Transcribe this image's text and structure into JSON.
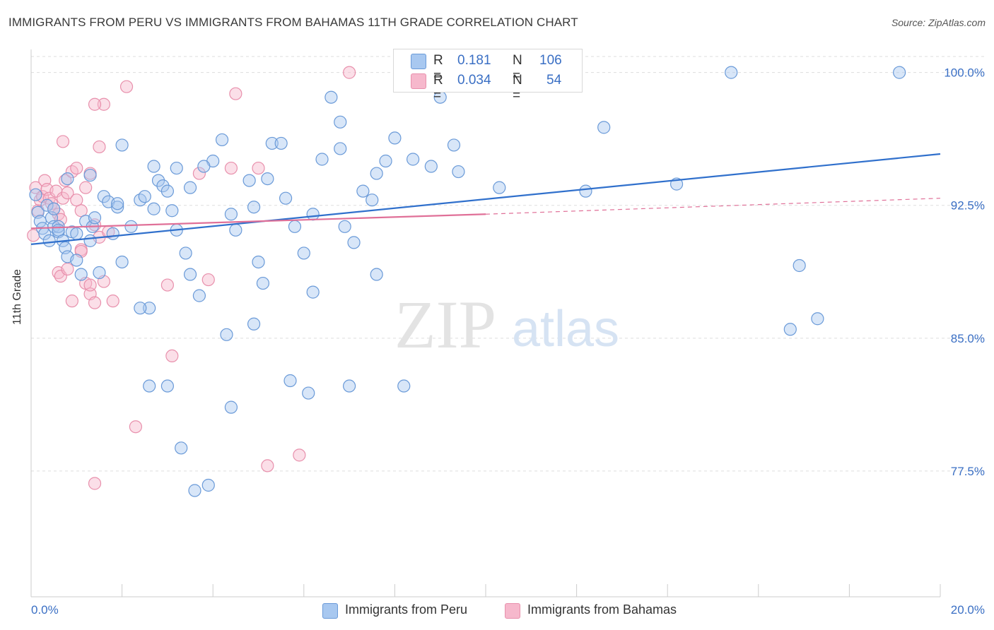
{
  "header": {
    "title": "IMMIGRANTS FROM PERU VS IMMIGRANTS FROM BAHAMAS 11TH GRADE CORRELATION CHART",
    "source": "Source: ZipAtlas.com"
  },
  "watermark": {
    "zip": "ZIP",
    "atlas": "atlas"
  },
  "legend_top": {
    "rows": [
      {
        "r_label": "R =",
        "r_value": "0.181",
        "n_label": "N =",
        "n_value": "106",
        "color": "#a8c8f0"
      },
      {
        "r_label": "R =",
        "r_value": "0.034",
        "n_label": "N =",
        "n_value": "54",
        "color": "#f6b8cc"
      }
    ]
  },
  "legend_bottom": {
    "items": [
      {
        "label": "Immigrants from Peru",
        "color": "#a8c8f0"
      },
      {
        "label": "Immigrants from Bahamas",
        "color": "#f6b8cc"
      }
    ]
  },
  "colors": {
    "peru_fill": "#a8c8f0",
    "peru_stroke": "#6a9ad8",
    "peru_line": "#3070cc",
    "bahamas_fill": "#f6b8cc",
    "bahamas_stroke": "#e890ac",
    "bahamas_line": "#e07098",
    "tick_label": "#3a6fc4",
    "grid": "#dddddd"
  },
  "chart_data": {
    "type": "scatter",
    "title": "IMMIGRANTS FROM PERU VS IMMIGRANTS FROM BAHAMAS 11TH GRADE CORRELATION CHART",
    "xlabel": "",
    "ylabel": "11th Grade",
    "xlim": [
      0,
      20
    ],
    "ylim": [
      70.4,
      101.3
    ],
    "x_tick_labels": [
      "0.0%",
      "20.0%"
    ],
    "y_ticks": [
      77.5,
      85.0,
      92.5,
      100.0
    ],
    "y_tick_labels": [
      "77.5%",
      "85.0%",
      "92.5%",
      "100.0%"
    ],
    "grid": true,
    "legend_position": "bottom",
    "series": [
      {
        "name": "Immigrants from Peru",
        "r": 0.181,
        "n": 106,
        "trend": {
          "x": [
            0,
            20
          ],
          "y": [
            90.3,
            95.4
          ]
        },
        "points": [
          [
            0.1,
            93.1
          ],
          [
            0.15,
            92.1
          ],
          [
            0.2,
            91.6
          ],
          [
            0.25,
            91.2
          ],
          [
            0.3,
            90.9
          ],
          [
            0.35,
            92.5
          ],
          [
            0.45,
            91.8
          ],
          [
            0.5,
            91.3
          ],
          [
            0.6,
            91.0
          ],
          [
            0.7,
            90.5
          ],
          [
            0.75,
            90.1
          ],
          [
            0.8,
            89.6
          ],
          [
            0.9,
            91.0
          ],
          [
            1.0,
            89.4
          ],
          [
            1.1,
            88.6
          ],
          [
            1.2,
            91.6
          ],
          [
            1.3,
            90.5
          ],
          [
            1.35,
            91.3
          ],
          [
            1.4,
            91.8
          ],
          [
            1.5,
            88.7
          ],
          [
            1.6,
            93.0
          ],
          [
            1.7,
            92.7
          ],
          [
            1.8,
            90.9
          ],
          [
            1.9,
            92.4
          ],
          [
            2.0,
            89.3
          ],
          [
            2.2,
            91.3
          ],
          [
            2.4,
            92.8
          ],
          [
            2.5,
            93.0
          ],
          [
            2.7,
            92.3
          ],
          [
            2.8,
            93.9
          ],
          [
            2.9,
            93.6
          ],
          [
            3.0,
            93.3
          ],
          [
            3.1,
            92.2
          ],
          [
            3.2,
            91.1
          ],
          [
            3.4,
            89.8
          ],
          [
            3.5,
            88.6
          ],
          [
            3.7,
            87.4
          ],
          [
            4.0,
            95.0
          ],
          [
            4.2,
            96.2
          ],
          [
            4.4,
            92.0
          ],
          [
            4.5,
            91.1
          ],
          [
            4.8,
            93.9
          ],
          [
            4.9,
            92.4
          ],
          [
            5.0,
            89.3
          ],
          [
            5.1,
            88.1
          ],
          [
            5.3,
            96.0
          ],
          [
            5.5,
            96.0
          ],
          [
            5.6,
            92.9
          ],
          [
            5.8,
            91.3
          ],
          [
            6.0,
            89.8
          ],
          [
            6.2,
            87.6
          ],
          [
            6.4,
            95.1
          ],
          [
            6.6,
            98.6
          ],
          [
            6.8,
            97.2
          ],
          [
            6.9,
            91.3
          ],
          [
            7.1,
            90.4
          ],
          [
            7.3,
            93.3
          ],
          [
            7.5,
            92.8
          ],
          [
            7.6,
            88.6
          ],
          [
            7.8,
            95.0
          ],
          [
            8.0,
            96.3
          ],
          [
            8.4,
            95.1
          ],
          [
            8.8,
            94.7
          ],
          [
            9.3,
            95.9
          ],
          [
            9.4,
            94.4
          ],
          [
            10.2,
            100.0
          ],
          [
            10.3,
            93.5
          ],
          [
            12.2,
            93.3
          ],
          [
            12.6,
            96.9
          ],
          [
            14.2,
            93.7
          ],
          [
            15.4,
            100.0
          ],
          [
            16.9,
            89.1
          ],
          [
            16.7,
            85.5
          ],
          [
            17.3,
            86.1
          ],
          [
            19.1,
            100.0
          ],
          [
            2.6,
            86.7
          ],
          [
            2.4,
            86.7
          ],
          [
            4.3,
            85.2
          ],
          [
            4.9,
            85.8
          ],
          [
            2.6,
            82.3
          ],
          [
            3.0,
            82.3
          ],
          [
            5.7,
            82.6
          ],
          [
            6.1,
            81.9
          ],
          [
            7.0,
            82.3
          ],
          [
            8.2,
            82.3
          ],
          [
            3.3,
            78.8
          ],
          [
            3.6,
            76.4
          ],
          [
            3.9,
            76.7
          ],
          [
            4.4,
            81.1
          ],
          [
            9.0,
            98.6
          ],
          [
            0.8,
            94.0
          ],
          [
            1.3,
            94.2
          ],
          [
            2.0,
            95.9
          ],
          [
            5.2,
            94.0
          ],
          [
            6.8,
            95.7
          ],
          [
            0.5,
            92.3
          ],
          [
            0.6,
            91.3
          ],
          [
            1.9,
            92.6
          ],
          [
            3.2,
            94.6
          ],
          [
            3.8,
            94.7
          ],
          [
            6.2,
            92.0
          ],
          [
            7.6,
            94.3
          ],
          [
            0.4,
            90.5
          ],
          [
            0.6,
            91.1
          ],
          [
            1.0,
            90.9
          ],
          [
            2.7,
            94.7
          ],
          [
            3.5,
            93.5
          ]
        ]
      },
      {
        "name": "Immigrants from Bahamas",
        "r": 0.034,
        "n": 54,
        "trend": {
          "x": [
            0,
            10
          ],
          "y": [
            91.2,
            92.0
          ]
        },
        "trend_extension": {
          "x": [
            10,
            20
          ],
          "y": [
            92.0,
            92.9
          ]
        },
        "points": [
          [
            0.05,
            90.8
          ],
          [
            0.1,
            93.5
          ],
          [
            0.15,
            92.2
          ],
          [
            0.2,
            92.8
          ],
          [
            0.25,
            93.0
          ],
          [
            0.3,
            93.9
          ],
          [
            0.35,
            93.4
          ],
          [
            0.4,
            92.9
          ],
          [
            0.45,
            92.6
          ],
          [
            0.5,
            92.3
          ],
          [
            0.55,
            93.3
          ],
          [
            0.6,
            92.0
          ],
          [
            0.65,
            91.7
          ],
          [
            0.7,
            92.9
          ],
          [
            0.75,
            93.9
          ],
          [
            0.8,
            93.2
          ],
          [
            0.9,
            94.4
          ],
          [
            1.0,
            94.6
          ],
          [
            1.1,
            92.2
          ],
          [
            1.2,
            93.5
          ],
          [
            1.3,
            94.3
          ],
          [
            1.4,
            91.4
          ],
          [
            1.5,
            90.7
          ],
          [
            1.6,
            88.2
          ],
          [
            1.7,
            91.0
          ],
          [
            0.7,
            96.1
          ],
          [
            1.1,
            90.0
          ],
          [
            1.2,
            88.1
          ],
          [
            0.6,
            88.7
          ],
          [
            0.65,
            88.5
          ],
          [
            0.8,
            88.9
          ],
          [
            0.9,
            87.1
          ],
          [
            1.3,
            87.5
          ],
          [
            1.4,
            87.0
          ],
          [
            1.8,
            87.1
          ],
          [
            1.1,
            89.9
          ],
          [
            1.3,
            88.0
          ],
          [
            1.5,
            95.8
          ],
          [
            1.6,
            98.2
          ],
          [
            1.4,
            98.2
          ],
          [
            2.1,
            99.2
          ],
          [
            4.5,
            98.8
          ],
          [
            7.0,
            100.0
          ],
          [
            3.7,
            94.3
          ],
          [
            4.4,
            94.6
          ],
          [
            5.0,
            94.6
          ],
          [
            3.0,
            88.0
          ],
          [
            3.9,
            88.3
          ],
          [
            3.1,
            84.0
          ],
          [
            2.3,
            80.0
          ],
          [
            5.2,
            77.8
          ],
          [
            5.9,
            78.4
          ],
          [
            1.4,
            76.8
          ],
          [
            1.0,
            92.8
          ]
        ]
      }
    ]
  }
}
